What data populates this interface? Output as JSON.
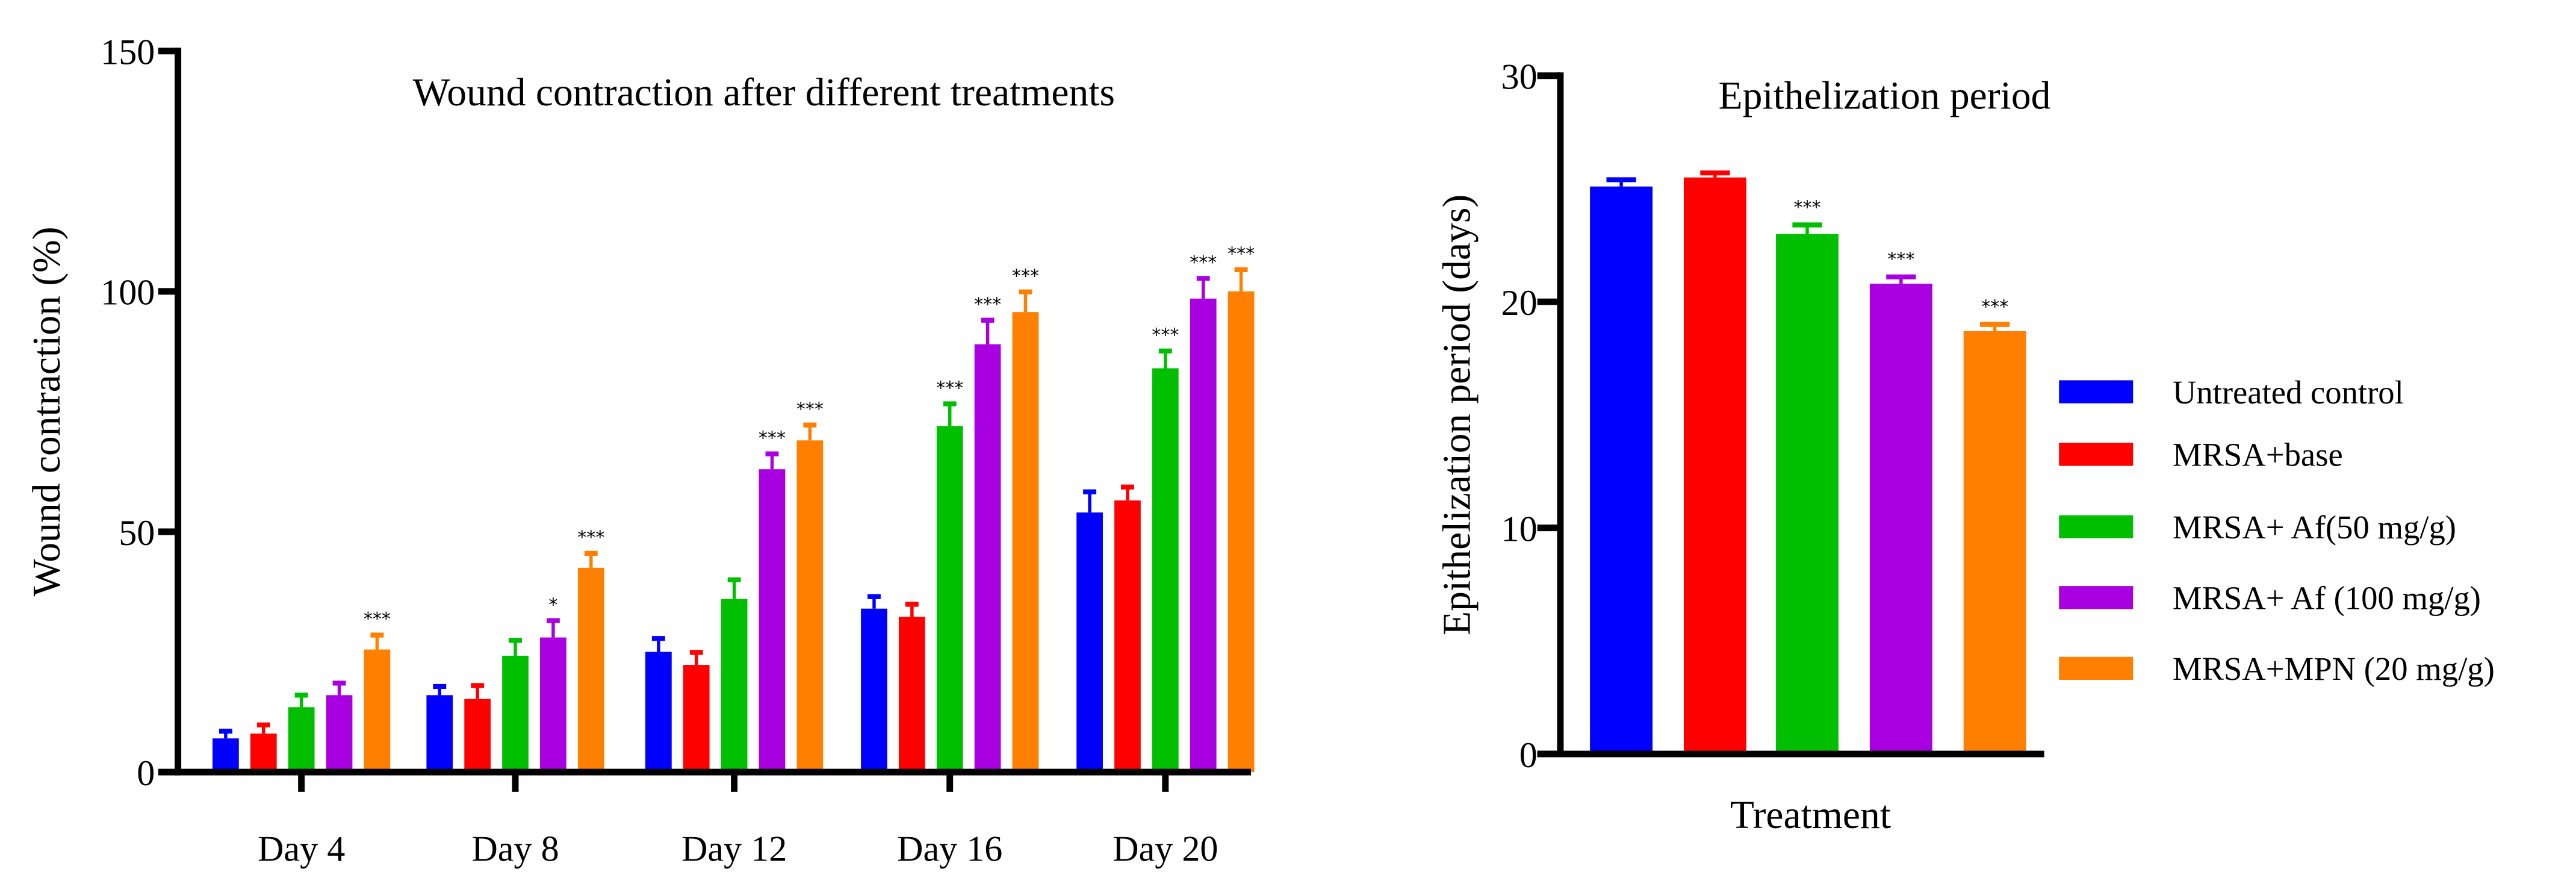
{
  "colors": {
    "series": [
      "#0000ff",
      "#ff0000",
      "#00bf00",
      "#a800e0",
      "#ff8000"
    ],
    "axis": "#000000"
  },
  "chart_data": [
    {
      "type": "bar",
      "title": "Wound contraction after different treatments",
      "xlabel": "",
      "ylabel": "Wound contraction (%)",
      "ylim": [
        0,
        150
      ],
      "yticks": [
        "0",
        "50",
        "100",
        "150"
      ],
      "categories": [
        "Day 4",
        "Day 8",
        "Day 12",
        "Day 16",
        "Day 20"
      ],
      "series": [
        {
          "name": "Untreated control",
          "values": [
            7,
            16,
            25,
            34,
            54
          ],
          "errors": [
            1.5,
            1.8,
            2.8,
            2.5,
            4.3
          ],
          "sig": [
            "",
            "",
            "",
            "",
            ""
          ]
        },
        {
          "name": "MRSA+base",
          "values": [
            8,
            15.2,
            22.3,
            32.3,
            56.5
          ],
          "errors": [
            1.8,
            2.8,
            2.6,
            2.6,
            2.8
          ],
          "sig": [
            "",
            "",
            "",
            "",
            ""
          ]
        },
        {
          "name": "MRSA+ Af(50 mg/g)",
          "values": [
            13.5,
            24.2,
            36,
            72,
            84
          ],
          "errors": [
            2.5,
            3.2,
            4,
            4.6,
            3.6
          ],
          "sig": [
            "",
            "",
            "",
            "***",
            "***"
          ]
        },
        {
          "name": "MRSA+ Af (100 mg/g)",
          "values": [
            16,
            28,
            63,
            89,
            98.5
          ],
          "errors": [
            2.5,
            3.5,
            3.2,
            5,
            4.2
          ],
          "sig": [
            "",
            "*",
            "***",
            "***",
            "***"
          ]
        },
        {
          "name": "MRSA+MPN (20 mg/g)",
          "values": [
            25.5,
            42.5,
            69,
            95.7,
            100
          ],
          "errors": [
            3,
            3,
            3.2,
            4.2,
            4.5
          ],
          "sig": [
            "***",
            "***",
            "***",
            "***",
            "***"
          ]
        }
      ],
      "grid": false
    },
    {
      "type": "bar",
      "title": "Epithelization period",
      "xlabel": "Treatment",
      "ylabel": "Epithelization period (days)",
      "ylim": [
        0,
        30
      ],
      "yticks": [
        "0",
        "10",
        "20",
        "30"
      ],
      "categories": [
        "Untreated control",
        "MRSA+base",
        "MRSA+ Af(50 mg/g)",
        "MRSA+ Af (100 mg/g)",
        "MRSA+MPN (20 mg/g)"
      ],
      "values": [
        25.1,
        25.5,
        23,
        20.8,
        18.7
      ],
      "errors": [
        0.3,
        0.2,
        0.4,
        0.3,
        0.3
      ],
      "sig": [
        "",
        "",
        "***",
        "***",
        "***"
      ],
      "legend": {
        "position": "right",
        "entries": [
          "Untreated control",
          "MRSA+base",
          "MRSA+ Af(50 mg/g)",
          "MRSA+ Af (100 mg/g)",
          "MRSA+MPN (20 mg/g)"
        ]
      },
      "grid": false
    }
  ]
}
